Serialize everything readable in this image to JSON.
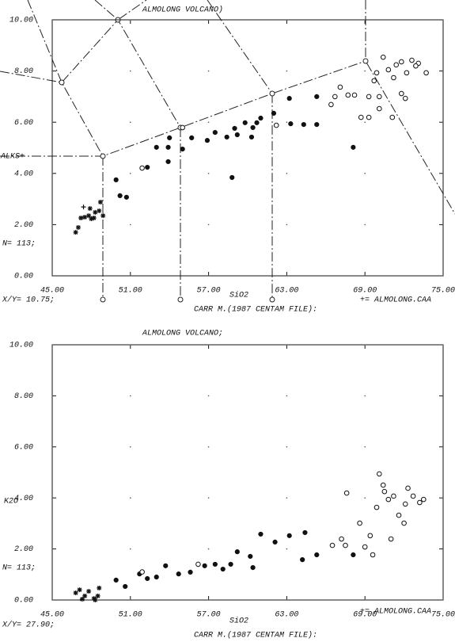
{
  "chart_data": [
    {
      "type": "scatter",
      "title": "ALMOLONG VOLCANO)",
      "x_label": "SiO2",
      "y_label": "ALKS+",
      "notes": [
        "N= 113;",
        "X/Y= 10.75;",
        "CARR M.(1987  CENTAM FILE):",
        "+= ALMOLONG.CAA"
      ],
      "xlim": [
        45,
        75
      ],
      "ylim": [
        0,
        10
      ],
      "grid": "dots",
      "xticks": [
        {
          "value": 45,
          "label": "45.00"
        },
        {
          "value": 51,
          "label": "51.00"
        },
        {
          "value": 57,
          "label": "57.00"
        },
        {
          "value": 63,
          "label": "63.00"
        },
        {
          "value": 69,
          "label": "69.00"
        },
        {
          "value": 75,
          "label": "75.00"
        }
      ],
      "yticks": [
        {
          "value": 0,
          "label": "0.00"
        },
        {
          "value": 2,
          "label": "2.00"
        },
        {
          "value": 4,
          "label": "4.00"
        },
        {
          "value": 6,
          "label": "6.00"
        },
        {
          "value": 8,
          "label": "8.00"
        },
        {
          "value": 10,
          "label": "10.00"
        }
      ],
      "series": [
        {
          "marker": "star",
          "color": "#111",
          "x": [
            46.8,
            47.0,
            47.2,
            47.5,
            47.8,
            48.0,
            48.3,
            48.6,
            48.7,
            48.9,
            47.9,
            48.2
          ],
          "values": [
            1.7,
            1.89,
            2.26,
            2.29,
            2.35,
            2.23,
            2.48,
            2.54,
            2.88,
            2.35,
            2.63,
            2.26
          ]
        },
        {
          "marker": "plus",
          "color": "#111",
          "x": [
            47.4
          ],
          "values": [
            2.69
          ]
        },
        {
          "marker": "filled",
          "color": "#111",
          "x": [
            49.9,
            50.2,
            50.7,
            52.3,
            53.0,
            53.9,
            53.9,
            54.0,
            55.0,
            55.7,
            56.9,
            57.5,
            58.4,
            59.0,
            58.8,
            59.2,
            59.8,
            60.3,
            60.4,
            60.7,
            61.0,
            62.0,
            63.3,
            64.3,
            65.3,
            68.1,
            63.2,
            65.3
          ],
          "values": [
            3.75,
            3.13,
            3.07,
            4.24,
            5.02,
            5.02,
            4.46,
            5.39,
            4.95,
            5.39,
            5.29,
            5.6,
            5.42,
            5.76,
            3.84,
            5.51,
            5.98,
            5.42,
            5.79,
            5.98,
            6.16,
            6.35,
            5.94,
            5.91,
            5.91,
            5.02,
            6.93,
            7.0
          ]
        },
        {
          "marker": "open",
          "color": "#111",
          "x": [
            51.9,
            55.0,
            62.2,
            66.4,
            66.7,
            67.7,
            67.1,
            68.2,
            68.7,
            69.3,
            70.1,
            69.3,
            69.9,
            70.4,
            70.8,
            71.4,
            71.8,
            72.2,
            72.6,
            73.1,
            73.7,
            69.7,
            71.1,
            71.8,
            72.1,
            70.1,
            71.2,
            72.9
          ],
          "values": [
            4.21,
            5.79,
            5.88,
            6.69,
            7.0,
            7.06,
            7.37,
            7.06,
            6.19,
            6.19,
            6.53,
            7.0,
            7.93,
            8.54,
            8.05,
            8.24,
            8.36,
            7.93,
            8.42,
            8.3,
            7.93,
            7.62,
            6.19,
            7.12,
            6.93,
            7.0,
            7.74,
            8.2
          ]
        }
      ]
    },
    {
      "type": "scatter",
      "title": "ALMOLONG VOLCANO;",
      "x_label": "SiO2",
      "y_label": "K2O",
      "notes": [
        "N= 113;",
        "X/Y= 27.90;",
        "CARR M.(1987  CENTAM FILE):",
        "+= ALMOLONG.CAA"
      ],
      "xlim": [
        45,
        75
      ],
      "ylim": [
        0,
        10
      ],
      "grid": "dots",
      "xticks": [
        {
          "value": 45,
          "label": "45.00"
        },
        {
          "value": 51,
          "label": "51.00"
        },
        {
          "value": 57,
          "label": "57.00"
        },
        {
          "value": 63,
          "label": "63.00"
        },
        {
          "value": 69,
          "label": "69.00"
        },
        {
          "value": 75,
          "label": "75.00"
        }
      ],
      "yticks": [
        {
          "value": 0,
          "label": "0.00"
        },
        {
          "value": 2,
          "label": "2.00"
        },
        {
          "value": 4,
          "label": "4.00"
        },
        {
          "value": 6,
          "label": "6.00"
        },
        {
          "value": 8,
          "label": "8.00"
        },
        {
          "value": 10,
          "label": "10.00"
        }
      ],
      "series": [
        {
          "marker": "star",
          "color": "#111",
          "x": [
            46.8,
            47.1,
            47.5,
            47.8,
            48.2,
            48.5,
            48.6,
            47.3,
            48.3
          ],
          "values": [
            0.28,
            0.4,
            0.16,
            0.34,
            0.06,
            0.16,
            0.47,
            0.03,
            0.0
          ]
        },
        {
          "marker": "filled",
          "color": "#111",
          "x": [
            49.9,
            50.6,
            51.7,
            52.3,
            53.0,
            53.7,
            54.7,
            55.6,
            56.7,
            57.5,
            58.1,
            58.7,
            59.2,
            60.2,
            60.4,
            61.0,
            62.1,
            63.2,
            64.2,
            64.4,
            65.3,
            68.1
          ],
          "values": [
            0.78,
            0.53,
            1.02,
            0.84,
            0.9,
            1.34,
            1.02,
            1.09,
            1.34,
            1.4,
            1.21,
            1.4,
            1.89,
            1.71,
            1.27,
            2.58,
            2.27,
            2.52,
            1.58,
            2.64,
            1.77,
            1.77
          ]
        },
        {
          "marker": "open",
          "color": "#111",
          "x": [
            51.9,
            56.2,
            67.6,
            67.2,
            67.5,
            68.6,
            69.4,
            69.9,
            70.1,
            70.5,
            70.8,
            71.2,
            71.6,
            72.0,
            72.3,
            72.7,
            73.2,
            73.5,
            69.0,
            69.6,
            71.0,
            72.1,
            70.4,
            66.5
          ],
          "values": [
            1.1,
            1.4,
            4.19,
            2.39,
            2.14,
            3.01,
            2.52,
            3.63,
            4.94,
            4.25,
            3.94,
            4.07,
            3.32,
            3.01,
            4.38,
            4.07,
            3.82,
            3.94,
            2.08,
            1.77,
            2.39,
            3.76,
            4.5,
            2.14
          ]
        }
      ]
    }
  ]
}
